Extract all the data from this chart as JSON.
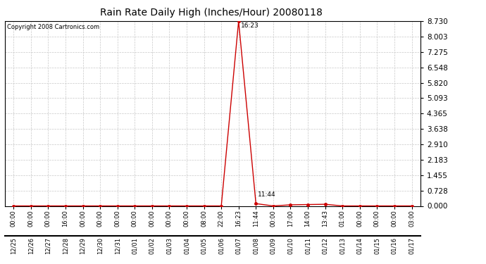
{
  "title": "Rain Rate Daily High (Inches/Hour) 20080118",
  "copyright": "Copyright 2008 Cartronics.com",
  "background_color": "#ffffff",
  "plot_bg_color": "#ffffff",
  "line_color": "#cc0000",
  "grid_color": "#c8c8c8",
  "annotation_peak": "16:23",
  "annotation_after_peak": "11:44",
  "yticks": [
    0.0,
    0.728,
    1.455,
    2.183,
    2.91,
    3.638,
    4.365,
    5.093,
    5.82,
    6.548,
    7.275,
    8.003,
    8.73
  ],
  "ymax": 8.73,
  "date_labels": [
    "12/25",
    "12/26",
    "12/27",
    "12/28",
    "12/29",
    "12/30",
    "12/31",
    "01/01",
    "01/02",
    "01/03",
    "01/04",
    "01/05",
    "01/06",
    "01/07",
    "01/08",
    "01/09",
    "01/10",
    "01/11",
    "01/12",
    "01/13",
    "01/14",
    "01/15",
    "01/16",
    "01/17"
  ],
  "time_labels": [
    "00:00",
    "00:00",
    "00:00",
    "16:00",
    "00:00",
    "00:00",
    "00:00",
    "00:00",
    "00:00",
    "00:00",
    "00:00",
    "08:00",
    "22:00",
    "16:23",
    "11:44",
    "00:00",
    "17:00",
    "14:00",
    "13:43",
    "01:00",
    "00:00",
    "00:00",
    "00:00",
    "03:00"
  ],
  "values": [
    0.0,
    0.0,
    0.0,
    0.0,
    0.0,
    0.0,
    0.0,
    0.0,
    0.0,
    0.0,
    0.0,
    0.0,
    0.0,
    8.73,
    0.109,
    0.0,
    0.052,
    0.065,
    0.078,
    0.0,
    0.0,
    0.0,
    0.0,
    0.0
  ],
  "marker_color": "#cc0000",
  "marker_size": 3,
  "peak_idx": 13,
  "after_peak_idx": 14,
  "title_fontsize": 10,
  "copyright_fontsize": 6,
  "tick_fontsize": 6,
  "ytick_fontsize": 7.5
}
